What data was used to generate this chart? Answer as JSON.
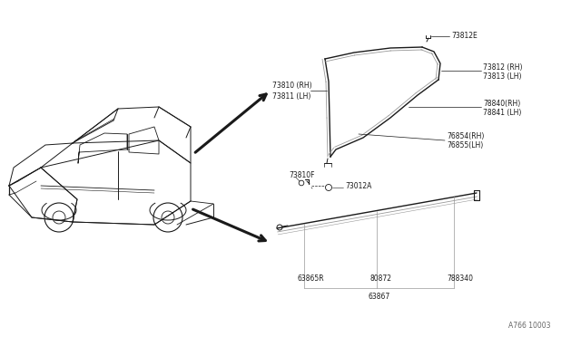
{
  "bg_color": "#ffffff",
  "line_color": "#1a1a1a",
  "gray_color": "#999999",
  "watermark": "A766 10003",
  "labels": {
    "73810_rh": "73810 (RH)",
    "73811_lh": "73811 (LH)",
    "73812e": "73812E",
    "73812_rh": "73812 (RH)",
    "73813_lh": "73813 (LH)",
    "78840_rh": "78840(RH)",
    "78841_lh": "78841 (LH)",
    "76854_rh": "76854(RH)",
    "76855_lh": "76855(LH)",
    "73810f": "73810F",
    "73812a": "73012A",
    "63865r": "63865R",
    "80872": "80872",
    "78834q": "788340",
    "63867": "63867"
  }
}
